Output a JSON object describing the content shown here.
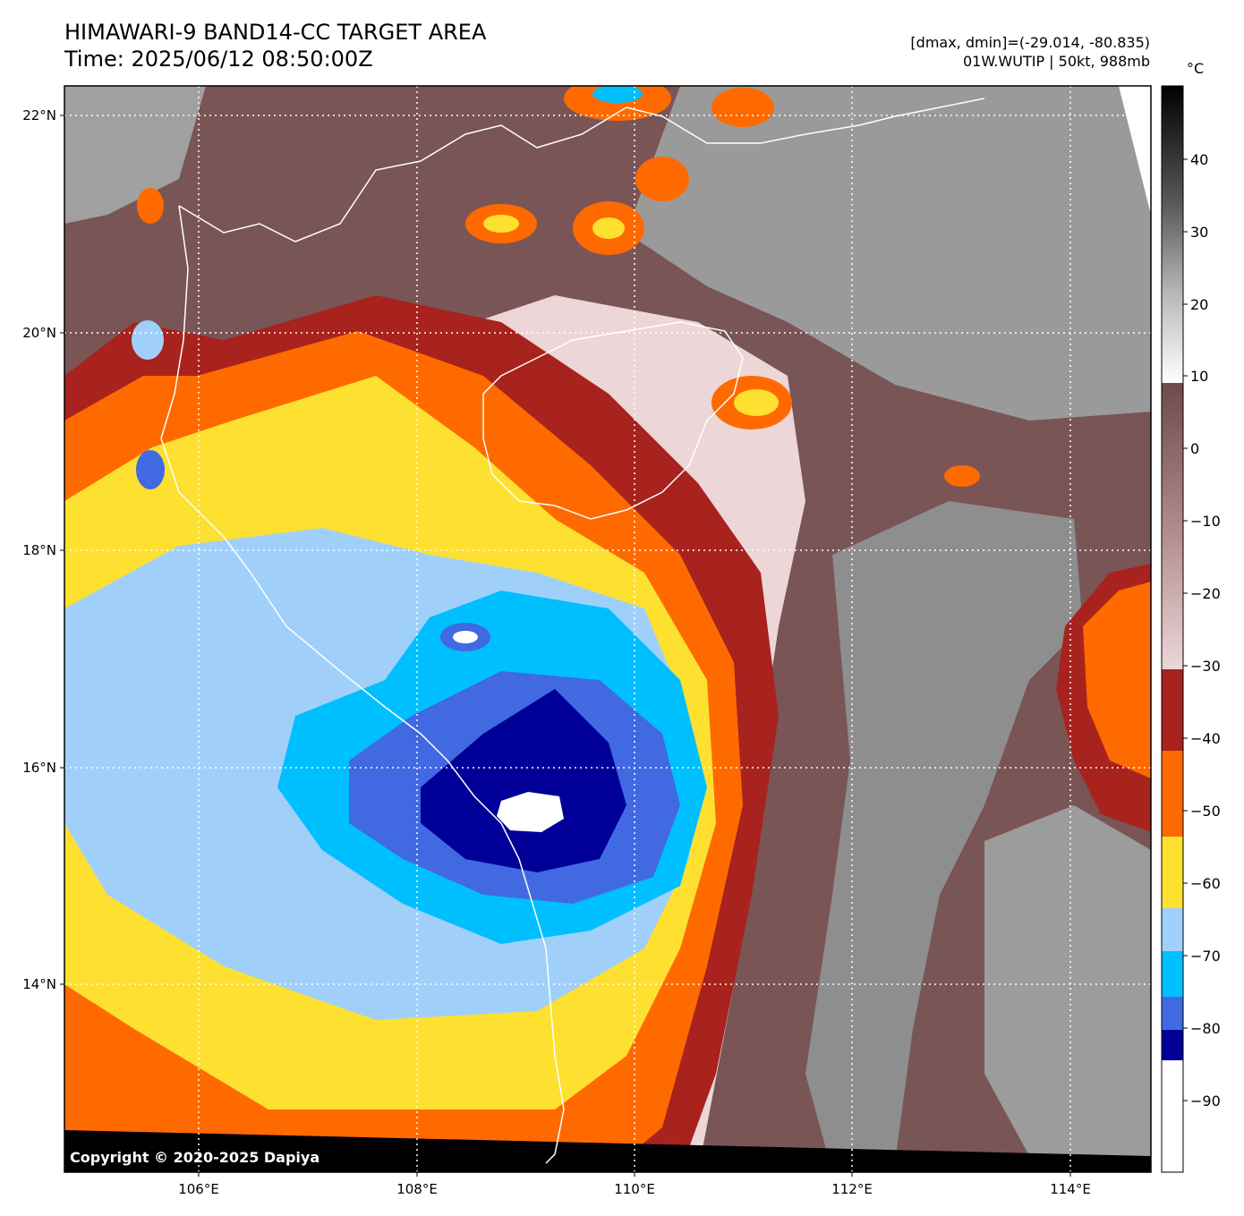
{
  "header": {
    "title_line1": "HIMAWARI-9 BAND14-CC TARGET AREA",
    "title_line2": "Time: 2025/06/12 08:50:00Z",
    "info_line1": "[dmax, dmin]=(-29.014, -80.835)",
    "info_line2": "01W.WUTIP | 50kt, 988mb"
  },
  "map": {
    "lat_labels": [
      "22°N",
      "20°N",
      "18°N",
      "16°N",
      "14°N"
    ],
    "lon_labels": [
      "106°E",
      "108°E",
      "110°E",
      "112°E",
      "114°E"
    ],
    "copyright": "Copyright © 2020-2025 Dapiya"
  },
  "colorbar": {
    "unit": "°C",
    "ticks": [
      "40",
      "30",
      "20",
      "10",
      "0",
      "−10",
      "−20",
      "−30",
      "−40",
      "−50",
      "−60",
      "−70",
      "−80",
      "−90"
    ],
    "colors": {
      "white": "#ffffff",
      "navy": "#000099",
      "royalblue": "#4169e1",
      "deepsky": "#00bfff",
      "lightblue": "#a0d0fa",
      "yellow": "#fde030",
      "orange": "#ff6a00",
      "darkred": "#a8221e",
      "pink": "#ecd6d8",
      "brown": "#7a5556",
      "gray": "#8a8a8a"
    }
  }
}
